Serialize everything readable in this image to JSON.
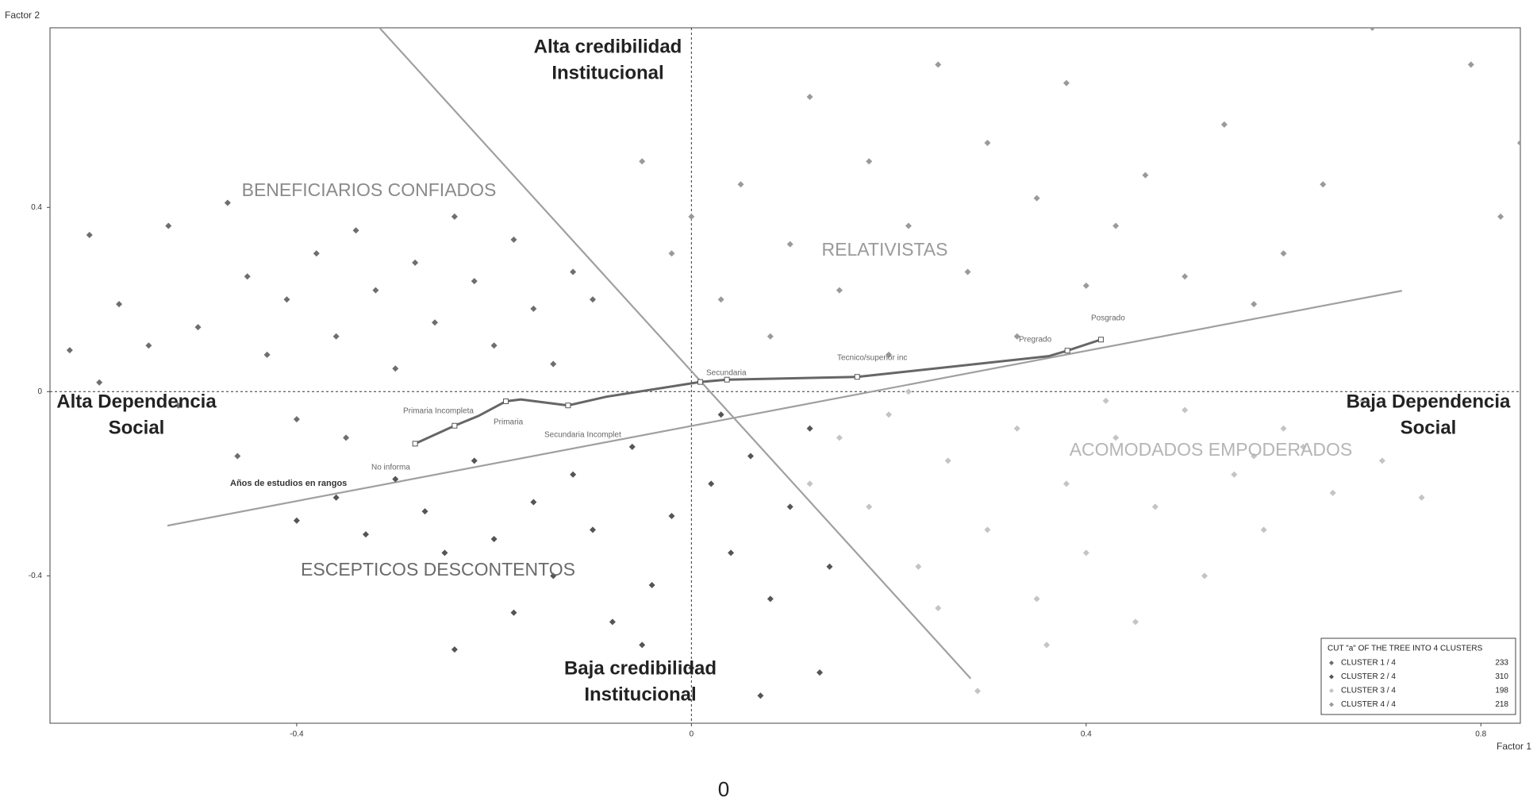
{
  "chart_data": {
    "type": "scatter",
    "x_label": "Factor 1",
    "y_label": "Factor 2",
    "xlim": [
      -0.65,
      0.84
    ],
    "ylim": [
      -0.72,
      0.79
    ],
    "xticks": [
      -0.4,
      0,
      0.4,
      0.8
    ],
    "yticks": [
      -0.4,
      0,
      0.4
    ],
    "legend_title": "CUT \"a\" OF THE TREE INTO  4 CLUSTERS",
    "legend_position": "lower right",
    "series": [
      {
        "name": "CLUSTER  1 / 4",
        "count": 233,
        "color": "#6e6e6e",
        "x": [
          -0.63,
          -0.61,
          -0.58,
          -0.55,
          -0.53,
          -0.5,
          -0.47,
          -0.45,
          -0.43,
          -0.41,
          -0.38,
          -0.36,
          -0.34,
          -0.32,
          -0.3,
          -0.28,
          -0.26,
          -0.24,
          -0.22,
          -0.2,
          -0.18,
          -0.16,
          -0.14,
          -0.12,
          -0.1,
          -0.52,
          -0.46,
          -0.4,
          -0.35,
          -0.6
        ],
        "values": [
          0.09,
          0.34,
          0.19,
          0.1,
          0.36,
          0.14,
          0.41,
          0.25,
          0.08,
          0.2,
          0.3,
          0.12,
          0.35,
          0.22,
          0.05,
          0.28,
          0.15,
          0.38,
          0.24,
          0.1,
          0.33,
          0.18,
          0.06,
          0.26,
          0.2,
          -0.03,
          -0.14,
          -0.06,
          -0.1,
          0.02
        ]
      },
      {
        "name": "CLUSTER  2 / 4",
        "count": 310,
        "color": "#555555",
        "x": [
          -0.4,
          -0.36,
          -0.33,
          -0.3,
          -0.27,
          -0.25,
          -0.22,
          -0.2,
          -0.18,
          -0.16,
          -0.14,
          -0.12,
          -0.1,
          -0.08,
          -0.06,
          -0.04,
          -0.02,
          0,
          0.02,
          0.04,
          0.06,
          0.08,
          0.1,
          0.12,
          0.14,
          0.07,
          0.13,
          -0.05,
          -0.24,
          0.03
        ],
        "values": [
          -0.28,
          -0.23,
          -0.31,
          -0.19,
          -0.26,
          -0.35,
          -0.15,
          -0.32,
          -0.48,
          -0.24,
          -0.4,
          -0.18,
          -0.3,
          -0.5,
          -0.12,
          -0.42,
          -0.27,
          -0.6,
          -0.2,
          -0.35,
          -0.14,
          -0.45,
          -0.25,
          -0.08,
          -0.38,
          -0.66,
          -0.61,
          -0.55,
          -0.56,
          -0.05
        ]
      },
      {
        "name": "CLUSTER  3 / 4",
        "count": 198,
        "color": "#c4c4c4",
        "x": [
          0.15,
          0.18,
          0.2,
          0.23,
          0.26,
          0.29,
          0.3,
          0.33,
          0.35,
          0.38,
          0.4,
          0.43,
          0.45,
          0.47,
          0.5,
          0.52,
          0.55,
          0.58,
          0.6,
          0.62,
          0.65,
          0.68,
          0.7,
          0.74,
          0.25,
          0.36,
          0.12,
          0.22,
          0.42,
          0.57
        ],
        "values": [
          -0.1,
          -0.25,
          -0.05,
          -0.38,
          -0.15,
          -0.65,
          -0.3,
          -0.08,
          -0.45,
          -0.2,
          -0.35,
          -0.1,
          -0.5,
          -0.25,
          -0.04,
          -0.4,
          -0.18,
          -0.3,
          -0.08,
          -0.12,
          -0.22,
          -0.02,
          -0.15,
          -0.23,
          -0.47,
          -0.55,
          -0.2,
          0.0,
          -0.02,
          -0.14
        ]
      },
      {
        "name": "CLUSTER  4 / 4",
        "count": 218,
        "color": "#9a9a9a",
        "x": [
          -0.05,
          -0.02,
          0.0,
          0.03,
          0.05,
          0.08,
          0.1,
          0.12,
          0.15,
          0.18,
          0.2,
          0.22,
          0.25,
          0.28,
          0.3,
          0.33,
          0.35,
          0.38,
          0.4,
          0.43,
          0.46,
          0.5,
          0.54,
          0.57,
          0.6,
          0.64,
          0.69,
          0.79,
          0.84,
          0.82
        ],
        "values": [
          0.5,
          0.3,
          0.38,
          0.2,
          0.45,
          0.12,
          0.32,
          0.64,
          0.22,
          0.5,
          0.08,
          0.36,
          0.71,
          0.26,
          0.54,
          0.12,
          0.42,
          0.67,
          0.23,
          0.36,
          0.47,
          0.25,
          0.58,
          0.19,
          0.3,
          0.45,
          0.79,
          0.71,
          0.54,
          0.38
        ]
      }
    ],
    "trajectory": {
      "name": "Años de estudios en rangos",
      "color": "#666666",
      "x": [
        -0.28,
        -0.24,
        -0.216,
        -0.188,
        -0.173,
        -0.125,
        -0.086,
        0.009,
        0.036,
        0.168,
        0.362,
        0.381,
        0.415
      ],
      "values": [
        -0.113,
        -0.074,
        -0.053,
        -0.021,
        -0.017,
        -0.03,
        -0.011,
        0.021,
        0.026,
        0.032,
        0.077,
        0.089,
        0.113
      ]
    },
    "modalities": [
      "No informa",
      "Primaria Incompleta",
      "Primaria",
      "Secundaria Incomplet",
      "Secundaria",
      "Tecnico/superior inc",
      "Pregrado",
      "Posgrado"
    ],
    "axis_lines": {
      "color": "#a0a0a0",
      "x": [
        [
          -0.342,
          0.283
        ],
        [
          -0.531,
          0.72
        ]
      ],
      "values": [
        [
          0.851,
          -0.623
        ],
        [
          -0.291,
          0.219
        ]
      ]
    },
    "cluster_labels": [
      "BENEFICIARIOS  CONFIADOS",
      "RELATIVISTAS",
      "ACOMODADOS EMPODERADOS",
      "ESCEPTICOS DESCONTENTOS"
    ],
    "pole_labels": [
      [
        "Alta credibilidad",
        "Institucional"
      ],
      [
        "Baja credibilidad",
        "Institucional"
      ],
      [
        "Alta Dependencia",
        "Social"
      ],
      [
        "Baja Dependencia",
        "Social"
      ]
    ],
    "caption": "0"
  }
}
